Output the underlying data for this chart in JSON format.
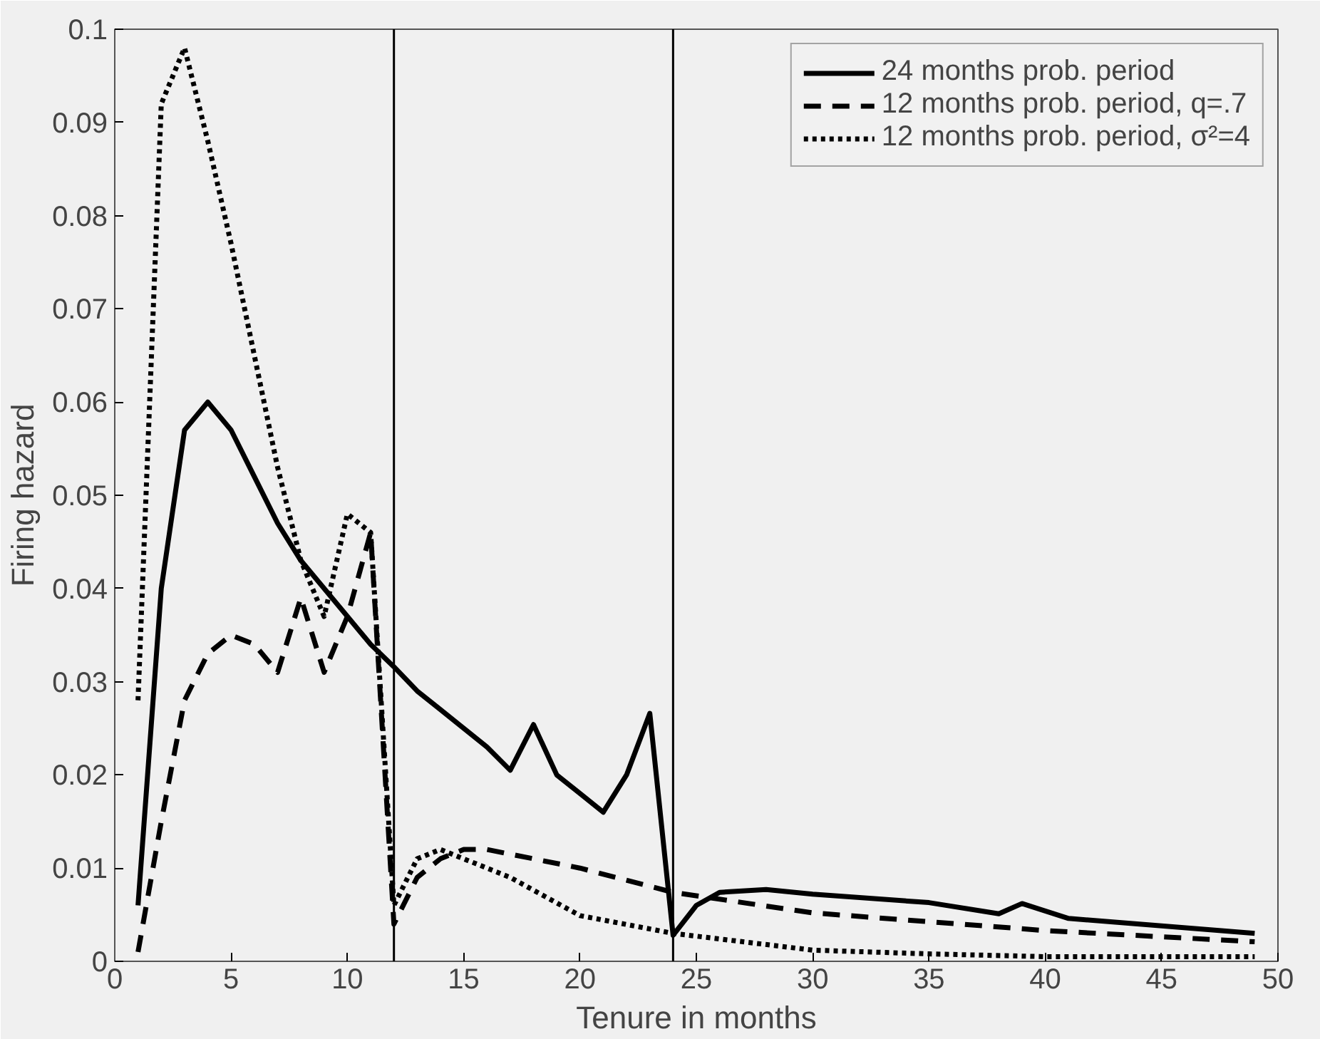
{
  "chart_data": {
    "type": "line",
    "xlabel": "Tenure in months",
    "ylabel": "Firing hazard",
    "xlim": [
      0,
      50
    ],
    "xticks": [
      0,
      5,
      10,
      15,
      20,
      25,
      30,
      35,
      40,
      45,
      50
    ],
    "ylim": [
      0,
      0.1
    ],
    "yticks": [
      0,
      0.01,
      0.02,
      0.03,
      0.04,
      0.05,
      0.06,
      0.07,
      0.08,
      0.09,
      0.1
    ],
    "grid": false,
    "legend": "top right",
    "ref_lines": [
      {
        "axis": "x",
        "value": 12,
        "color": "#000000"
      },
      {
        "axis": "x",
        "value": 24,
        "color": "#000000"
      }
    ],
    "series": [
      {
        "name": "24 months prob. period",
        "color": "#000000",
        "line_style": "solid",
        "x": [
          1,
          2,
          3,
          4,
          5,
          6,
          7,
          8,
          9,
          10,
          11,
          12,
          13,
          14,
          15,
          16,
          17,
          18,
          19,
          20,
          21,
          22,
          23,
          24,
          25,
          26,
          28,
          30,
          35,
          38,
          39,
          41,
          49
        ],
        "values": [
          0.006,
          0.04,
          0.057,
          0.06,
          0.057,
          0.052,
          0.047,
          0.043,
          0.04,
          0.037,
          0.034,
          0.0316,
          0.029,
          0.027,
          0.025,
          0.023,
          0.0205,
          0.0254,
          0.02,
          0.018,
          0.016,
          0.02,
          0.0266,
          0.0028,
          0.006,
          0.0074,
          0.0077,
          0.0072,
          0.0063,
          0.0051,
          0.0062,
          0.0046,
          0.003
        ]
      },
      {
        "name": "12 months prob. period, q=.7",
        "color": "#000000",
        "line_style": "dashed",
        "x": [
          1,
          2,
          3,
          4,
          5,
          6,
          7,
          8,
          9,
          10,
          11,
          12,
          13,
          14,
          15,
          16,
          20,
          24,
          30,
          40,
          49
        ],
        "values": [
          0.001,
          0.015,
          0.028,
          0.033,
          0.035,
          0.034,
          0.031,
          0.039,
          0.031,
          0.037,
          0.046,
          0.004,
          0.009,
          0.011,
          0.012,
          0.012,
          0.01,
          0.0074,
          0.0052,
          0.0033,
          0.0021
        ]
      },
      {
        "name": "12 months prob. period, σ²=4",
        "color": "#000000",
        "line_style": "dotted",
        "x": [
          1,
          2,
          3,
          4,
          5,
          6,
          7,
          8,
          9,
          10,
          11,
          12,
          13,
          14,
          15,
          17,
          20,
          24,
          30,
          35,
          40,
          49
        ],
        "values": [
          0.028,
          0.092,
          0.098,
          0.088,
          0.077,
          0.065,
          0.053,
          0.043,
          0.037,
          0.048,
          0.046,
          0.006,
          0.011,
          0.012,
          0.011,
          0.009,
          0.0049,
          0.003,
          0.0012,
          0.0008,
          0.0005,
          0.0005
        ]
      }
    ]
  }
}
